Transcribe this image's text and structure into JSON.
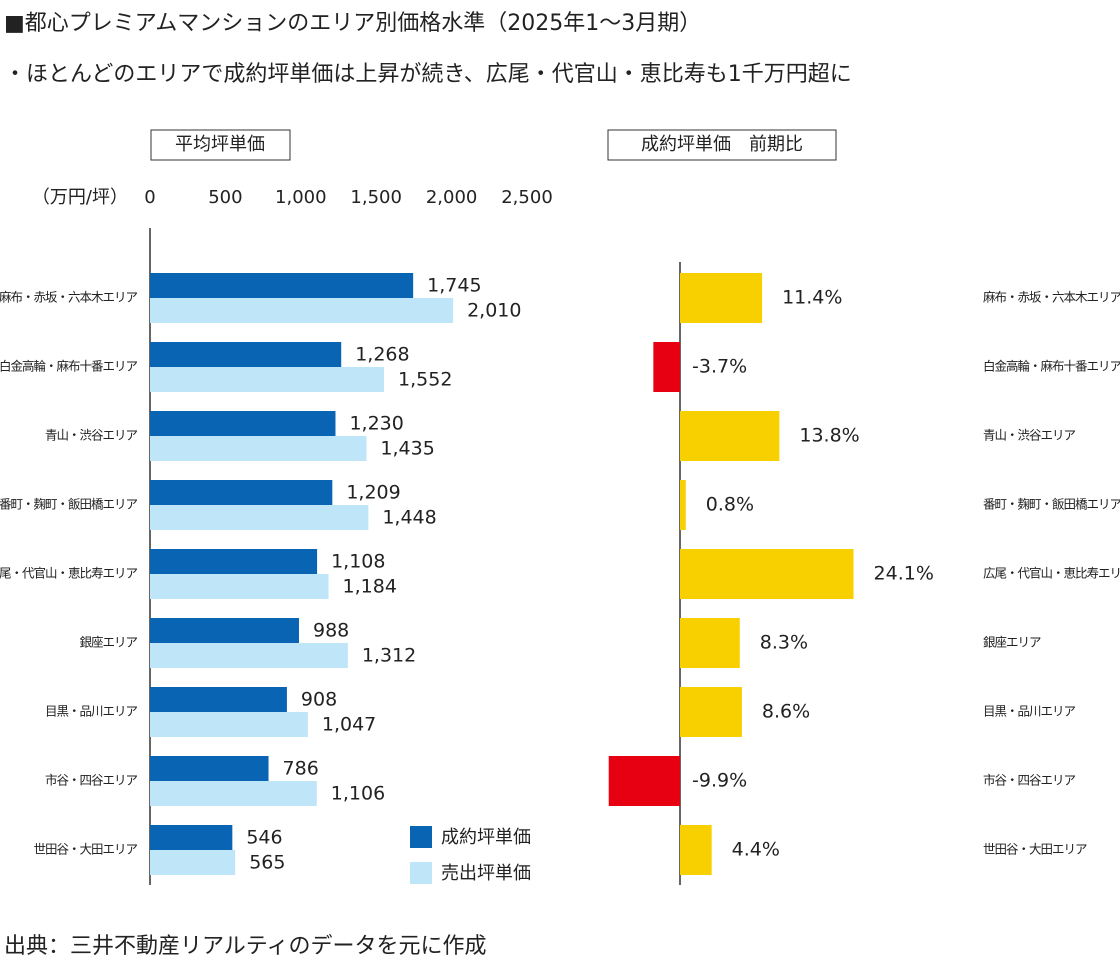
{
  "title": "■都心プレミアムマンションのエリア別価格水準（2025年1～3月期）",
  "subtitle": "・ほとんどのエリアで成約坪単価は上昇が続き、広尾・代官山・恵比寿も1千万円超に",
  "source": "出典：三井不動産リアルティのデータを元に作成",
  "chart_data": [
    {
      "type": "bar",
      "orientation": "horizontal",
      "panel_title": "平均坪単価",
      "unit_label": "（万円/坪）",
      "categories": [
        "麻布・赤坂・六本木エリア",
        "白金高輪・麻布十番エリア",
        "青山・渋谷エリア",
        "番町・麹町・飯田橋エリア",
        "広尾・代官山・恵比寿エリア",
        "銀座エリア",
        "目黒・品川エリア",
        "市谷・四谷エリア",
        "世田谷・大田エリア"
      ],
      "series": [
        {
          "name": "成約坪単価",
          "color": "#0a64b4",
          "values": [
            1745,
            1268,
            1230,
            1209,
            1108,
            988,
            908,
            786,
            546
          ],
          "value_labels": [
            "1,745",
            "1,268",
            "1,230",
            "1,209",
            "1,108",
            "988",
            "908",
            "786",
            "546"
          ]
        },
        {
          "name": "売出坪単価",
          "color": "#bfe5f8",
          "values": [
            2010,
            1552,
            1435,
            1448,
            1184,
            1312,
            1047,
            1106,
            565
          ],
          "value_labels": [
            "2,010",
            "1,552",
            "1,435",
            "1,448",
            "1,184",
            "1,312",
            "1,047",
            "1,106",
            "565"
          ]
        }
      ],
      "xlim": [
        0,
        2500
      ],
      "xticks": [
        0,
        500,
        {
          "value": 1000,
          "label": "1,000"
        },
        {
          "value": 1500,
          "label": "1,500"
        },
        {
          "value": 2000,
          "label": "2,000"
        },
        {
          "value": 2500,
          "label": "2,500"
        }
      ]
    },
    {
      "type": "bar",
      "orientation": "horizontal",
      "panel_title": "成約坪単価　前期比",
      "categories": [
        "麻布・赤坂・六本木エリア",
        "白金高輪・麻布十番エリア",
        "青山・渋谷エリア",
        "番町・麹町・飯田橋エリア",
        "広尾・代官山・恵比寿エリア",
        "銀座エリア",
        "目黒・品川エリア",
        "市谷・四谷エリア",
        "世田谷・大田エリア"
      ],
      "values": [
        11.4,
        -3.7,
        13.8,
        0.8,
        24.1,
        8.3,
        8.6,
        -9.9,
        4.4
      ],
      "value_labels": [
        "11.4%",
        "-3.7%",
        "13.8%",
        "0.8%",
        "24.1%",
        "8.3%",
        "8.6%",
        "-9.9%",
        "4.4%"
      ],
      "color": "#f8d000",
      "negative_color": "#e60012"
    }
  ]
}
